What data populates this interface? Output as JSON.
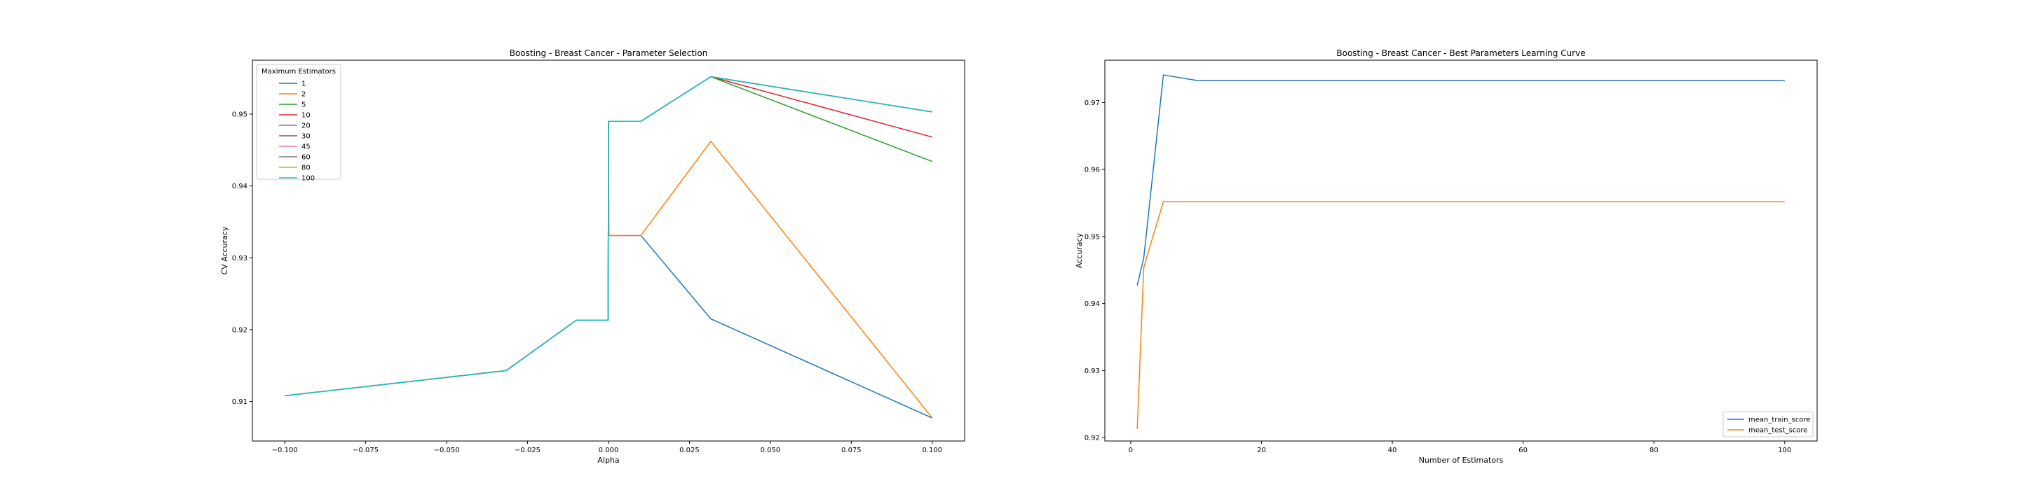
{
  "chart_data": [
    {
      "type": "line",
      "title": "Boosting - Breast Cancer - Parameter Selection",
      "xlabel": "Alpha",
      "ylabel": "CV Accuracy",
      "xlim": [
        -0.11,
        0.11
      ],
      "ylim": [
        0.9045,
        0.9575
      ],
      "xticks": [
        -0.1,
        -0.075,
        -0.05,
        -0.025,
        0.0,
        0.025,
        0.05,
        0.075,
        0.1
      ],
      "xtick_labels": [
        "−0.100",
        "−0.075",
        "−0.050",
        "−0.025",
        "0.000",
        "0.025",
        "0.050",
        "0.075",
        "0.100"
      ],
      "yticks": [
        0.91,
        0.92,
        0.93,
        0.94,
        0.95
      ],
      "ytick_labels": [
        "0.91",
        "0.92",
        "0.93",
        "0.94",
        "0.95"
      ],
      "grid": false,
      "legend": {
        "title": "Maximum Estimators",
        "placement": "top-left"
      },
      "x": [
        -0.1,
        -0.0316,
        -0.01,
        -0.001,
        -0.0001,
        0.0,
        0.0001,
        0.001,
        0.01,
        0.0316,
        0.1
      ],
      "series": [
        {
          "name": "1",
          "color": "#1f77b4",
          "values": [
            0.9108,
            0.9143,
            0.9213,
            0.9213,
            0.9213,
            0.949,
            0.9331,
            0.9331,
            0.9331,
            0.9215,
            0.9077
          ]
        },
        {
          "name": "2",
          "color": "#ff7f0e",
          "values": [
            0.9108,
            0.9143,
            0.9213,
            0.9213,
            0.9213,
            0.949,
            0.9331,
            0.9331,
            0.9331,
            0.9462,
            0.9077
          ]
        },
        {
          "name": "5",
          "color": "#2ca02c",
          "values": [
            0.9108,
            0.9143,
            0.9213,
            0.9213,
            0.9213,
            0.949,
            0.949,
            0.949,
            0.949,
            0.9552,
            0.9434
          ]
        },
        {
          "name": "10",
          "color": "#d62728",
          "values": [
            0.9108,
            0.9143,
            0.9213,
            0.9213,
            0.9213,
            0.949,
            0.949,
            0.949,
            0.949,
            0.9552,
            0.9468
          ]
        },
        {
          "name": "20",
          "color": "#9467bd",
          "values": [
            0.9108,
            0.9143,
            0.9213,
            0.9213,
            0.9213,
            0.949,
            0.949,
            0.949,
            0.949,
            0.9552,
            0.9503
          ]
        },
        {
          "name": "30",
          "color": "#8c564b",
          "values": [
            0.9108,
            0.9143,
            0.9213,
            0.9213,
            0.9213,
            0.949,
            0.949,
            0.949,
            0.949,
            0.9552,
            0.9503
          ]
        },
        {
          "name": "45",
          "color": "#e377c2",
          "values": [
            0.9108,
            0.9143,
            0.9213,
            0.9213,
            0.9213,
            0.949,
            0.949,
            0.949,
            0.949,
            0.9552,
            0.9503
          ]
        },
        {
          "name": "60",
          "color": "#7f7f7f",
          "values": [
            0.9108,
            0.9143,
            0.9213,
            0.9213,
            0.9213,
            0.949,
            0.949,
            0.949,
            0.949,
            0.9552,
            0.9503
          ]
        },
        {
          "name": "80",
          "color": "#bcbd22",
          "values": [
            0.9108,
            0.9143,
            0.9213,
            0.9213,
            0.9213,
            0.949,
            0.949,
            0.949,
            0.949,
            0.9552,
            0.9503
          ]
        },
        {
          "name": "100",
          "color": "#17becf",
          "values": [
            0.9108,
            0.9143,
            0.9213,
            0.9213,
            0.9213,
            0.949,
            0.949,
            0.949,
            0.949,
            0.9552,
            0.9503
          ]
        }
      ]
    },
    {
      "type": "line",
      "title": "Boosting - Breast Cancer - Best Parameters Learning Curve",
      "xlabel": "Number of Estimators",
      "ylabel": "Accuracy",
      "xlim": [
        -3.95,
        104.95
      ],
      "ylim": [
        0.9195,
        0.9763
      ],
      "xticks": [
        0,
        20,
        40,
        60,
        80,
        100
      ],
      "xtick_labels": [
        "0",
        "20",
        "40",
        "60",
        "80",
        "100"
      ],
      "yticks": [
        0.92,
        0.93,
        0.94,
        0.95,
        0.96,
        0.97
      ],
      "ytick_labels": [
        "0.92",
        "0.93",
        "0.94",
        "0.95",
        "0.96",
        "0.97"
      ],
      "grid": false,
      "legend": {
        "placement": "lower-right"
      },
      "x": [
        1,
        2,
        5,
        10,
        20,
        30,
        45,
        60,
        80,
        100
      ],
      "series": [
        {
          "name": "mean_train_score",
          "color": "#1f77b4",
          "values": [
            0.9427,
            0.9468,
            0.9741,
            0.9733,
            0.9733,
            0.9733,
            0.9733,
            0.9733,
            0.9733,
            0.9733
          ]
        },
        {
          "name": "mean_test_score",
          "color": "#ff7f0e",
          "values": [
            0.9213,
            0.9454,
            0.9552,
            0.9552,
            0.9552,
            0.9552,
            0.9552,
            0.9552,
            0.9552,
            0.9552
          ]
        }
      ]
    }
  ]
}
